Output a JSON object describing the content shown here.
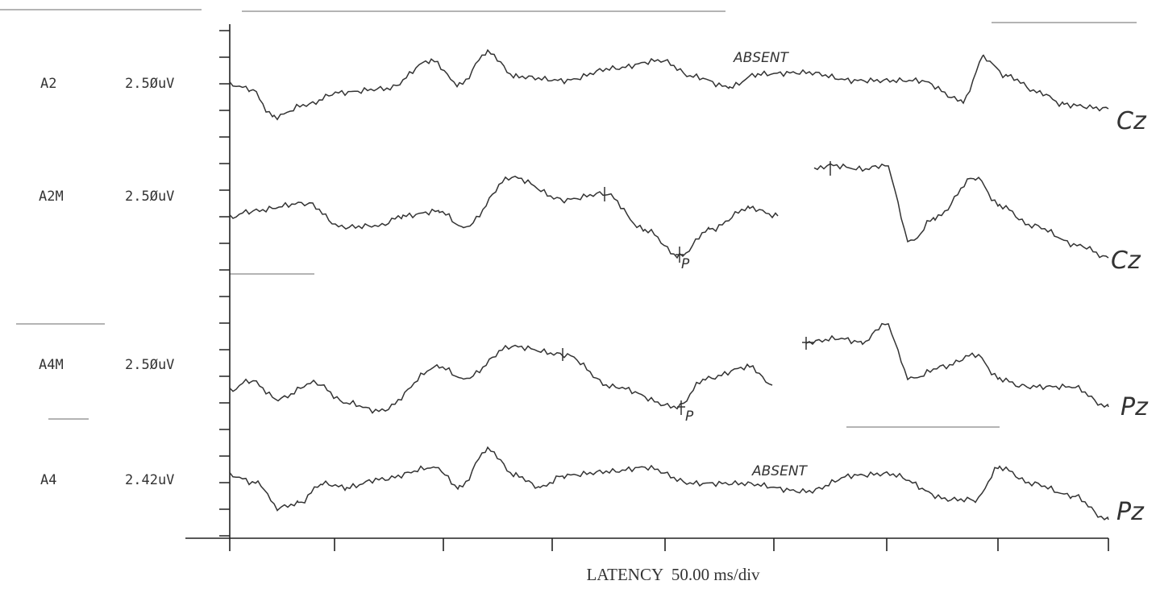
{
  "channels": [
    {
      "label": "A2",
      "scale": "2.5ØuV",
      "electrode": "Cz",
      "annotation": "ABSENT"
    },
    {
      "label": "A2M",
      "scale": "2.5ØuV",
      "electrode": "Cz",
      "peak": "P"
    },
    {
      "label": "A4M",
      "scale": "2.5ØuV",
      "electrode": "Pz",
      "peak": "P"
    },
    {
      "label": "A4",
      "scale": "2.42uV",
      "electrode": "Pz",
      "annotation": "ABSENT"
    }
  ],
  "axis": {
    "label": "LATENCY  50.00 ms/div"
  }
}
